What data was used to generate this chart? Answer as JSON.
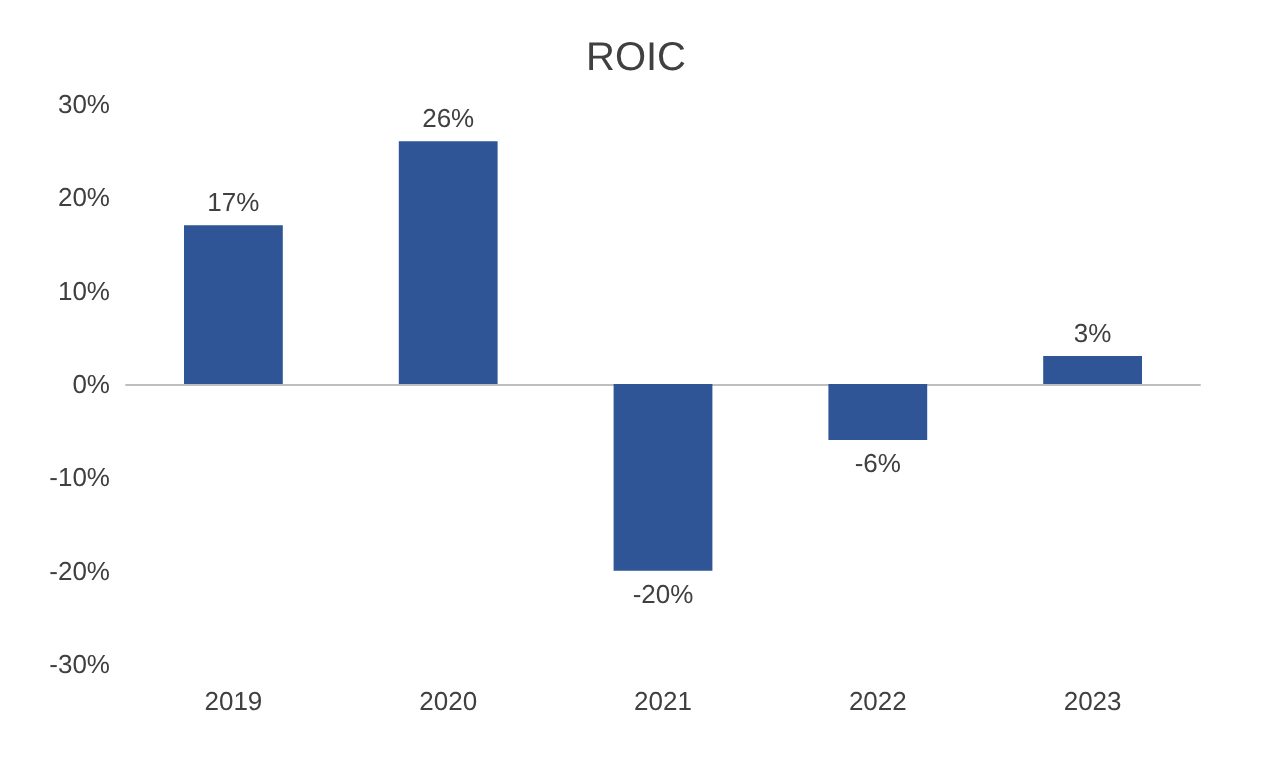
{
  "chart_data": {
    "type": "bar",
    "title": "ROIC",
    "categories": [
      "2019",
      "2020",
      "2021",
      "2022",
      "2023"
    ],
    "values": [
      17,
      26,
      -20,
      -6,
      3
    ],
    "value_labels": [
      "17%",
      "26%",
      "-20%",
      "-6%",
      "3%"
    ],
    "color": "#2f5597",
    "ylim": [
      -30,
      30
    ],
    "yticks": [
      {
        "value": -30,
        "label": "-30%"
      },
      {
        "value": -20,
        "label": "-20%"
      },
      {
        "value": -10,
        "label": "-10%"
      },
      {
        "value": 0,
        "label": "0%"
      },
      {
        "value": 10,
        "label": "10%"
      },
      {
        "value": 20,
        "label": "20%"
      },
      {
        "value": 30,
        "label": "30%"
      }
    ]
  }
}
